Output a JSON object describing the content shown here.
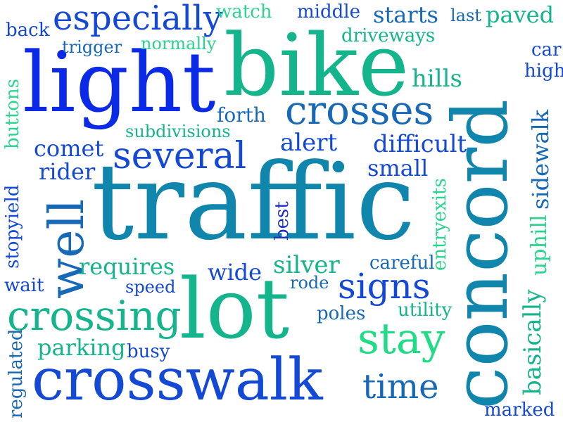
{
  "palette": {
    "blue": "#0a2ae8",
    "royal": "#1449d6",
    "steel": "#1769b8",
    "teal": "#1186ac",
    "sea": "#14b58c",
    "mint": "#1fdc86",
    "green": "#2bd48e",
    "navy": "#1c2fc8"
  },
  "words": [
    {
      "text": "traffic",
      "color": "teal"
    },
    {
      "text": "concord",
      "color": "teal"
    },
    {
      "text": "light",
      "color": "blue"
    },
    {
      "text": "bike",
      "color": "sea"
    },
    {
      "text": "lot",
      "color": "sea"
    },
    {
      "text": "crosswalk",
      "color": "royal"
    },
    {
      "text": "crossing",
      "color": "sea"
    },
    {
      "text": "well",
      "color": "steel"
    },
    {
      "text": "crosses",
      "color": "steel"
    },
    {
      "text": "several",
      "color": "royal"
    },
    {
      "text": "especially",
      "color": "royal"
    },
    {
      "text": "stay",
      "color": "mint"
    },
    {
      "text": "signs",
      "color": "royal"
    },
    {
      "text": "time",
      "color": "steel"
    },
    {
      "text": "sidewalk",
      "color": "steel"
    },
    {
      "text": "uphill",
      "color": "green"
    },
    {
      "text": "basically",
      "color": "sea"
    },
    {
      "text": "difficult",
      "color": "royal"
    },
    {
      "text": "small",
      "color": "royal"
    },
    {
      "text": "alert",
      "color": "royal"
    },
    {
      "text": "comet",
      "color": "royal"
    },
    {
      "text": "rider",
      "color": "royal"
    },
    {
      "text": "parking",
      "color": "sea"
    },
    {
      "text": "requires",
      "color": "sea"
    },
    {
      "text": "silver",
      "color": "sea"
    },
    {
      "text": "wide",
      "color": "royal"
    },
    {
      "text": "starts",
      "color": "steel"
    },
    {
      "text": "paved",
      "color": "sea"
    },
    {
      "text": "hills",
      "color": "sea"
    },
    {
      "text": "forth",
      "color": "steel"
    },
    {
      "text": "subdivisions",
      "color": "sea"
    },
    {
      "text": "driveways",
      "color": "sea"
    },
    {
      "text": "normally",
      "color": "green"
    },
    {
      "text": "trigger",
      "color": "steel"
    },
    {
      "text": "watch",
      "color": "green"
    },
    {
      "text": "middle",
      "color": "royal"
    },
    {
      "text": "last",
      "color": "steel"
    },
    {
      "text": "back",
      "color": "royal"
    },
    {
      "text": "car",
      "color": "royal"
    },
    {
      "text": "high",
      "color": "royal"
    },
    {
      "text": "buttons",
      "color": "green"
    },
    {
      "text": "stopyield",
      "color": "royal"
    },
    {
      "text": "best",
      "color": "navy"
    },
    {
      "text": "entryexits",
      "color": "green"
    },
    {
      "text": "careful",
      "color": "steel"
    },
    {
      "text": "speed",
      "color": "royal"
    },
    {
      "text": "rode",
      "color": "steel"
    },
    {
      "text": "wait",
      "color": "royal"
    },
    {
      "text": "poles",
      "color": "steel"
    },
    {
      "text": "utility",
      "color": "sea"
    },
    {
      "text": "busy",
      "color": "royal"
    },
    {
      "text": "regulated",
      "color": "steel"
    },
    {
      "text": "marked",
      "color": "royal"
    }
  ]
}
